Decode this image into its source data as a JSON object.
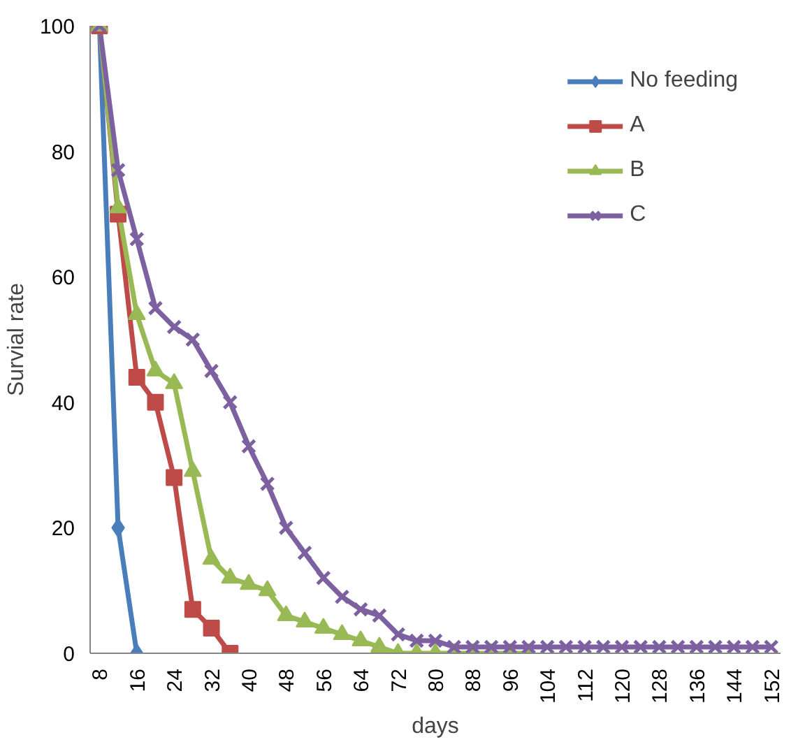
{
  "chart_data": {
    "type": "line",
    "xlabel": "days",
    "ylabel": "Survial rate",
    "xlim": [
      6,
      154
    ],
    "xticks": [
      8,
      16,
      24,
      32,
      40,
      48,
      56,
      64,
      72,
      80,
      88,
      96,
      104,
      112,
      120,
      128,
      136,
      144,
      152
    ],
    "ylim": [
      0,
      100
    ],
    "yticks": [
      0,
      20,
      40,
      60,
      80,
      100
    ],
    "grid": false,
    "legend": "top right",
    "line_style": "solid",
    "series": [
      {
        "name": "No feeding",
        "color": "#4a7ebb",
        "marker": "diamond",
        "x": [
          8,
          12,
          16
        ],
        "values": [
          100,
          20,
          0
        ]
      },
      {
        "name": "A",
        "color": "#be4b48",
        "marker": "square",
        "x": [
          8,
          12,
          16,
          20,
          24,
          28,
          32,
          36
        ],
        "values": [
          100,
          70,
          44,
          40,
          28,
          7,
          4,
          0
        ]
      },
      {
        "name": "B",
        "color": "#98b954",
        "marker": "triangle",
        "x": [
          8,
          12,
          16,
          20,
          24,
          28,
          32,
          36,
          40,
          44,
          48,
          52,
          56,
          60,
          64,
          68,
          72,
          76,
          80,
          84,
          88,
          92,
          96,
          100
        ],
        "values": [
          100,
          71,
          54,
          45,
          43,
          29,
          15,
          12,
          11,
          10,
          6,
          5,
          4,
          3,
          2,
          1,
          0,
          0,
          0,
          0,
          0,
          0,
          0,
          0
        ]
      },
      {
        "name": "C",
        "color": "#7d60a0",
        "marker": "cross",
        "x": [
          8,
          12,
          16,
          20,
          24,
          28,
          32,
          36,
          40,
          44,
          48,
          52,
          56,
          60,
          64,
          68,
          72,
          76,
          80,
          84,
          88,
          92,
          96,
          100,
          104,
          108,
          112,
          116,
          120,
          124,
          128,
          132,
          136,
          140,
          144,
          148,
          152
        ],
        "values": [
          100,
          77,
          66,
          55,
          52,
          50,
          45,
          40,
          33,
          27,
          20,
          16,
          12,
          9,
          7,
          6,
          3,
          2,
          2,
          1,
          1,
          1,
          1,
          1,
          1,
          1,
          1,
          1,
          1,
          1,
          1,
          1,
          1,
          1,
          1,
          1,
          1
        ]
      }
    ]
  }
}
